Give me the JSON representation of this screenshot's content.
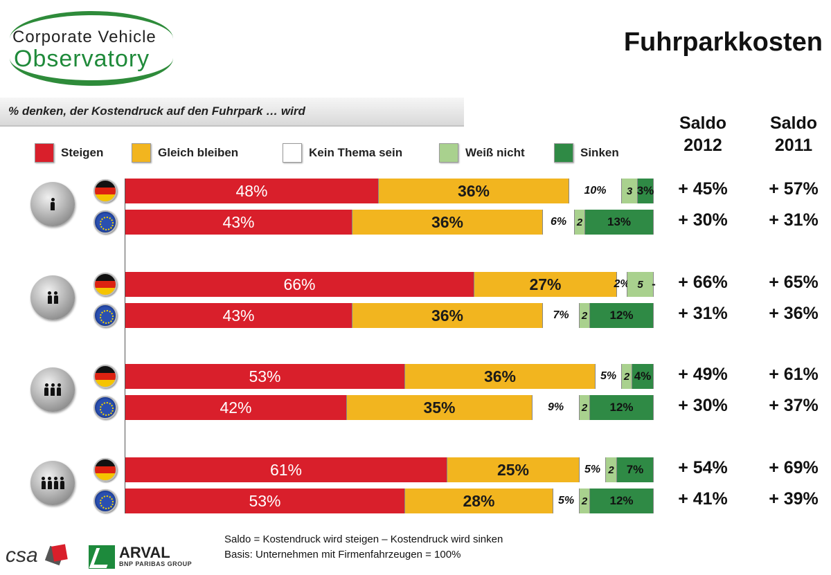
{
  "logo": {
    "line1": "Corporate Vehicle",
    "line2": "Observatory"
  },
  "page_title": "Fuhrparkkosten",
  "question": "% denken,  der Kostendruck  auf den Fuhrpark  … wird",
  "saldo_headers": [
    {
      "line1": "Saldo",
      "line2": "2012"
    },
    {
      "line1": "Saldo",
      "line2": "2011"
    }
  ],
  "legend": [
    {
      "label": "Steigen",
      "color": "#d91f2b"
    },
    {
      "label": "Gleich bleiben",
      "color": "#f2b51f"
    },
    {
      "label": "Kein Thema sein",
      "color": "#ffffff"
    },
    {
      "label": "Weiß nicht",
      "color": "#a9d18e"
    },
    {
      "label": "Sinken",
      "color": "#2f8a45"
    }
  ],
  "chart_data": {
    "type": "bar",
    "orientation": "horizontal",
    "stacked": true,
    "categories": [
      "Steigen",
      "Gleich bleiben",
      "Kein Thema sein",
      "Weiß nicht",
      "Sinken"
    ],
    "groups": [
      {
        "icon": "person-1-icon",
        "rows": [
          {
            "flag": "germany-flag-icon",
            "values": [
              48,
              36,
              10,
              3,
              3
            ],
            "labels": [
              "48%",
              "36%",
              "10%",
              "3",
              "3%"
            ],
            "saldo_2012": "+ 45%",
            "saldo_2011": "+ 57%"
          },
          {
            "flag": "eu-flag-icon",
            "values": [
              43,
              36,
              6,
              2,
              13
            ],
            "labels": [
              "43%",
              "36%",
              "6%",
              "2",
              "13%"
            ],
            "saldo_2012": "+ 30%",
            "saldo_2011": "+ 31%"
          }
        ]
      },
      {
        "icon": "person-2-icon",
        "rows": [
          {
            "flag": "germany-flag-icon",
            "values": [
              66,
              27,
              2,
              5,
              0
            ],
            "labels": [
              "66%",
              "27%",
              "2%",
              "5",
              "-"
            ],
            "saldo_2012": "+ 66%",
            "saldo_2011": "+ 65%"
          },
          {
            "flag": "eu-flag-icon",
            "values": [
              43,
              36,
              7,
              2,
              12
            ],
            "labels": [
              "43%",
              "36%",
              "7%",
              "2",
              "12%"
            ],
            "saldo_2012": "+ 31%",
            "saldo_2011": "+ 36%"
          }
        ]
      },
      {
        "icon": "person-3-icon",
        "rows": [
          {
            "flag": "germany-flag-icon",
            "values": [
              53,
              36,
              5,
              2,
              4
            ],
            "labels": [
              "53%",
              "36%",
              "5%",
              "2",
              "4%"
            ],
            "saldo_2012": "+ 49%",
            "saldo_2011": "+ 61%"
          },
          {
            "flag": "eu-flag-icon",
            "values": [
              42,
              35,
              9,
              2,
              12
            ],
            "labels": [
              "42%",
              "35%",
              "9%",
              "2",
              "12%"
            ],
            "saldo_2012": "+ 30%",
            "saldo_2011": "+ 37%"
          }
        ]
      },
      {
        "icon": "person-4-icon",
        "rows": [
          {
            "flag": "germany-flag-icon",
            "values": [
              61,
              25,
              5,
              2,
              7
            ],
            "labels": [
              "61%",
              "25%",
              "5%",
              "2",
              "7%"
            ],
            "saldo_2012": "+ 54%",
            "saldo_2011": "+ 69%"
          },
          {
            "flag": "eu-flag-icon",
            "values": [
              53,
              28,
              5,
              2,
              12
            ],
            "labels": [
              "53%",
              "28%",
              "5%",
              "2",
              "12%"
            ],
            "saldo_2012": "+ 41%",
            "saldo_2011": "+ 39%"
          }
        ]
      }
    ],
    "xlim": [
      0,
      100
    ],
    "grid": false,
    "legend_position": "top"
  },
  "footer": {
    "csa": "csa",
    "arval_name": "ARVAL",
    "arval_sub": "BNP PARIBAS GROUP",
    "note_line1": "Saldo = Kostendruck wird steigen – Kostendruck wird sinken",
    "note_line2": "Basis: Unternehmen mit Firmenfahrzeugen = 100%"
  }
}
